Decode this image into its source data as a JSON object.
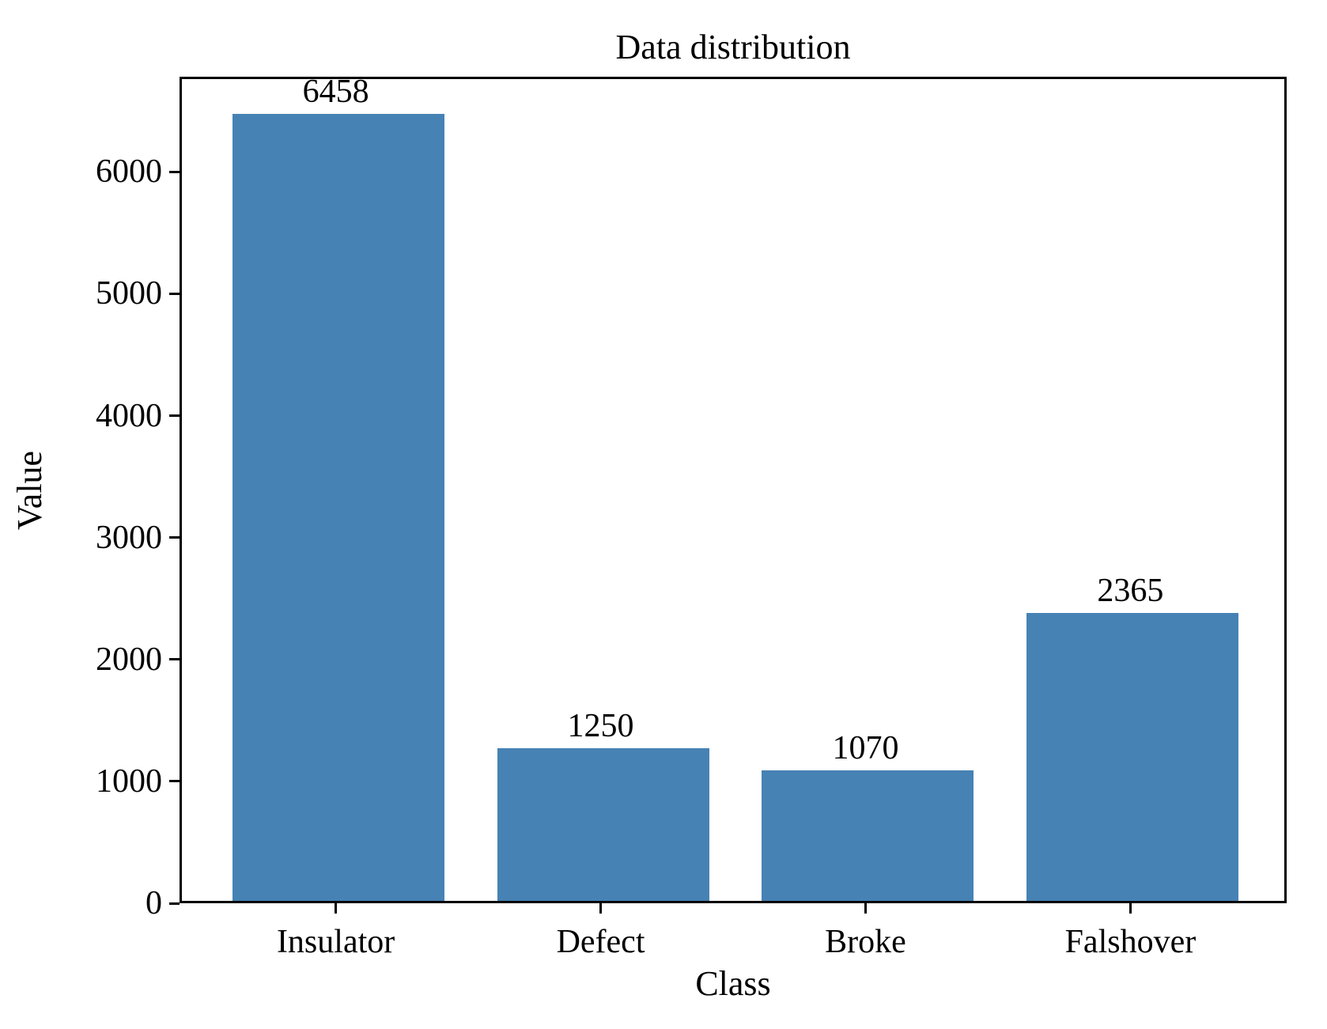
{
  "chart_data": {
    "type": "bar",
    "title": "Data distribution",
    "xlabel": "Class",
    "ylabel": "Value",
    "categories": [
      "Insulator",
      "Defect",
      "Broke",
      "Falshover"
    ],
    "values": [
      6458,
      1250,
      1070,
      2365
    ],
    "value_labels": [
      "6458",
      "1250",
      "1070",
      "2365"
    ],
    "yticks": [
      0,
      1000,
      2000,
      3000,
      4000,
      5000,
      6000
    ],
    "ytick_labels": [
      "0",
      "1000",
      "2000",
      "3000",
      "4000",
      "5000",
      "6000"
    ],
    "ylim": [
      0,
      6781
    ],
    "grid": false,
    "legend": "none",
    "bar_color": "#4682b4",
    "spine_color": "#000000",
    "text_color": "#000000",
    "background_color": "#ffffff"
  }
}
